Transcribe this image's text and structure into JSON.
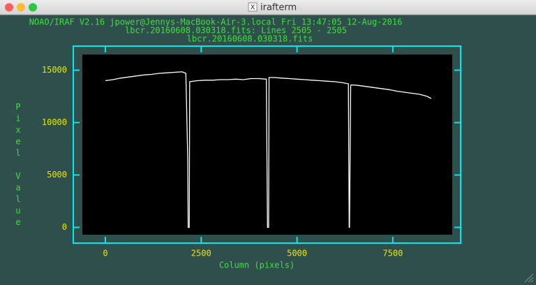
{
  "window": {
    "title": "irafterm"
  },
  "chart_data": {
    "type": "line",
    "title": "NOAO/IRAF V2.16 jpower@Jennys-MacBook-Air-3.local Fri 13:47:05 12-Aug-2016",
    "subtitle": "lbcr.20160608.030318.fits: Lines 2505 - 2505",
    "subtitle2": "lbcr.20160608.030318.fits",
    "xlabel": "Column (pixels)",
    "ylabel": "Pixel Value",
    "x": [
      0,
      200,
      400,
      600,
      800,
      1000,
      1200,
      1400,
      1600,
      1800,
      2000,
      2100,
      2150,
      2160,
      2190,
      2200,
      2400,
      2600,
      2800,
      3000,
      3200,
      3400,
      3600,
      3800,
      4000,
      4200,
      4220,
      4230,
      4260,
      4270,
      4400,
      4600,
      4800,
      5000,
      5200,
      5400,
      5600,
      5800,
      6000,
      6200,
      6340,
      6360,
      6370,
      6400,
      6410,
      6600,
      6800,
      7000,
      7200,
      7400,
      7600,
      7800,
      8000,
      8200,
      8400,
      8500
    ],
    "series": [
      {
        "name": "lbcr.20160608.030318.fits",
        "color": "#ffffff",
        "values": [
          14000,
          14100,
          14250,
          14350,
          14450,
          14550,
          14600,
          14700,
          14750,
          14800,
          14850,
          14700,
          6500,
          0,
          0,
          13900,
          14000,
          14050,
          14050,
          14100,
          14100,
          14150,
          14100,
          14200,
          14200,
          14150,
          5000,
          0,
          0,
          14300,
          14300,
          14250,
          14200,
          14150,
          14100,
          14050,
          14000,
          13950,
          13900,
          13800,
          13700,
          0,
          0,
          13500,
          13600,
          13550,
          13450,
          13350,
          13250,
          13150,
          13000,
          12900,
          12800,
          12700,
          12500,
          12300
        ]
      }
    ],
    "xlim": [
      -600,
      9050
    ],
    "ylim": [
      -700,
      16500
    ],
    "xticks": [
      0,
      2500,
      5000,
      7500
    ],
    "yticks": [
      0,
      5000,
      10000,
      15000
    ]
  }
}
